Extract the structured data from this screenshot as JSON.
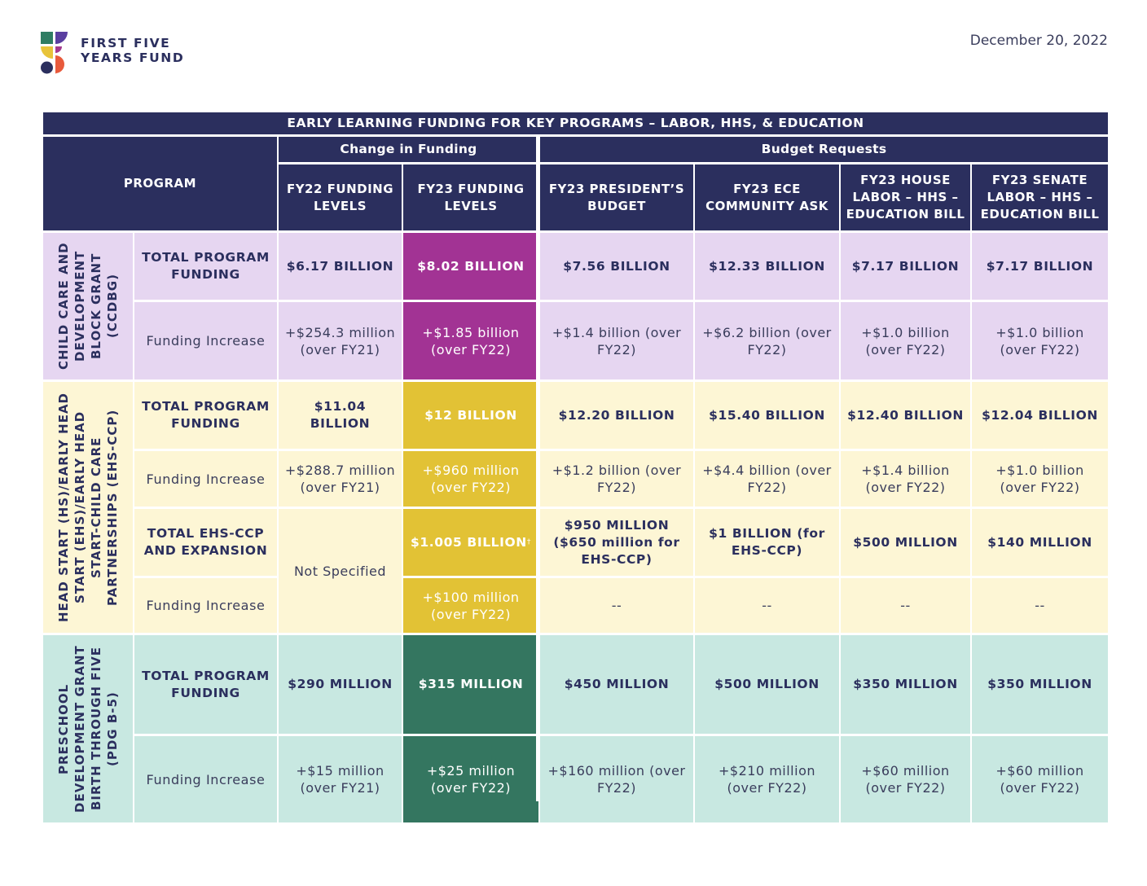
{
  "logo": {
    "line1": "FIRST FIVE",
    "line2": "YEARS FUND",
    "colors": [
      "#2f7d63",
      "#5a3fa0",
      "#e8c43a",
      "#a33a8f",
      "#2b2f5e",
      "#e85a3c"
    ]
  },
  "date": "December 20, 2022",
  "table": {
    "title": "EARLY LEARNING FUNDING FOR KEY PROGRAMS – LABOR, HHS, & EDUCATION",
    "group_change": "Change in Funding",
    "group_requests": "Budget Requests",
    "program_header": "PROGRAM",
    "columns": [
      "FY22 FUNDING LEVELS",
      "FY23 FUNDING LEVELS",
      "FY23 PRESIDENT’S BUDGET",
      "FY23 ECE COMMUNITY ASK",
      "FY23 HOUSE LABOR – HHS – EDUCATION BILL",
      "FY23 SENATE LABOR – HHS – EDUCATION BILL"
    ],
    "ccdbg": {
      "name": "CHILD CARE AND DEVELOPMENT BLOCK GRANT (CCDBG)",
      "total_label": "TOTAL PROGRAM FUNDING",
      "inc_label": "Funding Increase",
      "total": [
        "$6.17 BILLION",
        "$8.02 BILLION",
        "$7.56 BILLION",
        "$12.33 BILLION",
        "$7.17 BILLION",
        "$7.17 BILLION"
      ],
      "inc": [
        "+$254.3 million (over FY21)",
        "+$1.85 billion (over FY22)",
        "+$1.4 billion (over FY22)",
        "+$6.2 billion (over FY22)",
        "+$1.0 billion (over FY22)",
        "+$1.0 billion (over FY22)"
      ]
    },
    "headstart": {
      "name": "HEAD START (HS)/EARLY HEAD START (EHS)/EARLY HEAD START-CHILD CARE PARTNERSHIPS (EHS-CCP)",
      "total_label": "TOTAL PROGRAM FUNDING",
      "inc_label": "Funding Increase",
      "total": [
        "$11.04 BILLION",
        "$12 BILLION",
        "$12.20 BILLION",
        "$15.40 BILLION",
        "$12.40 BILLION",
        "$12.04 BILLION"
      ],
      "inc": [
        "+$288.7 million (over FY21)",
        "+$960 million (over FY22)",
        "+$1.2 billion (over FY22)",
        "+$4.4 billion (over FY22)",
        "+$1.4 billion (over FY22)",
        "+$1.0 billion (over FY22)"
      ],
      "ehs_label": "TOTAL EHS-CCP AND EXPANSION",
      "ehs_inc_label": "Funding Increase",
      "not_specified": "Not Specified",
      "ehs_fy23": "$1.005 BILLION",
      "ehs_fy23_note": "†",
      "ehs_requests": [
        "$950 MILLION ($650 million for EHS-CCP)",
        "$1 BILLION (for EHS-CCP)",
        "$500 MILLION",
        "$140 MILLION"
      ],
      "ehs_inc_fy23": "+$100 million (over FY22)",
      "ehs_inc_requests": [
        "--",
        "--",
        "--",
        "--"
      ]
    },
    "pdg": {
      "name": "PRESCHOOL DEVELOPMENT GRANT BIRTH THROUGH FIVE (PDG B-5)",
      "total_label": "TOTAL PROGRAM FUNDING",
      "inc_label": "Funding Increase",
      "total": [
        "$290 MILLION",
        "$315 MILLION",
        "$450 MILLION",
        "$500 MILLION",
        "$350 MILLION",
        "$350 MILLION"
      ],
      "inc": [
        "+$15 million (over FY21)",
        "+$25 million (over FY22)",
        "+$160 million (over FY22)",
        "+$210 million (over FY22)",
        "+$60 million (over FY22)",
        "+$60 million (over FY22)"
      ]
    }
  }
}
